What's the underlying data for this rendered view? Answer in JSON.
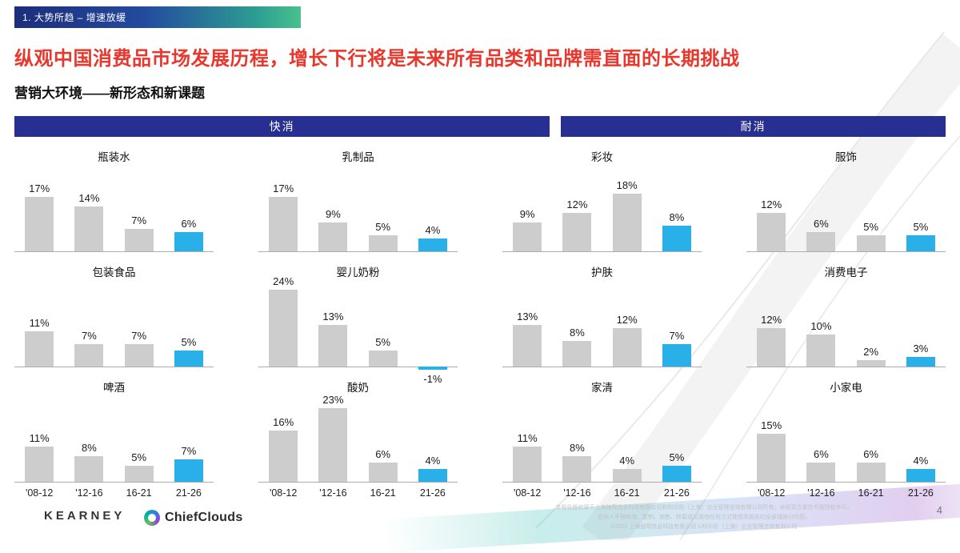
{
  "slide": {
    "kicker": "1. 大势所趋 – 增速放缓",
    "title": "纵观中国消费品市场发展历程，增长下行将是未来所有品类和品牌需直面的长期挑战",
    "subtitle": "营销大环境——新形态和新课题",
    "page_number": "4"
  },
  "sections": [
    {
      "label": "快消"
    },
    {
      "label": "耐消"
    }
  ],
  "footer": {
    "kearney_logo": "KEARNEY",
    "chiefclouds_logo": "ChiefClouds",
    "disclaimer_lines": [
      "本报告版权属于上海驰骛信息科技有限公司和科尔尼（上海）企业管理咨询有限公司所有，未经双方事先书面授权许可，",
      "任何人不得修改、复制、销售、转载或以其他任何方式使用本报告的全部或部分内容。",
      "©2022 上海驰骛信息科技有限公司 ©科尔尼（上海）企业管理咨询有限公司"
    ]
  },
  "colors": {
    "bar_gray": "#cdcdcd",
    "bar_blue": "#2ab0e8",
    "header_navy": "#272f93",
    "title_red": "#e8372c"
  },
  "chart_data": [
    {
      "type": "bar",
      "title": "瓶装水",
      "group": "快消",
      "categories": [
        "'08-12",
        "'12-16",
        "16-21",
        "21-26"
      ],
      "values": [
        17,
        14,
        7,
        6
      ],
      "unit": "%",
      "ylim": [
        -2,
        25
      ],
      "highlight": "last_bar_blue"
    },
    {
      "type": "bar",
      "title": "乳制品",
      "group": "快消",
      "categories": [
        "'08-12",
        "'12-16",
        "16-21",
        "21-26"
      ],
      "values": [
        17,
        9,
        5,
        4
      ],
      "unit": "%",
      "ylim": [
        -2,
        25
      ],
      "highlight": "last_bar_blue"
    },
    {
      "type": "bar",
      "title": "彩妆",
      "group": "耐消",
      "categories": [
        "'08-12",
        "'12-16",
        "16-21",
        "21-26"
      ],
      "values": [
        9,
        12,
        18,
        8
      ],
      "unit": "%",
      "ylim": [
        -2,
        25
      ],
      "highlight": "last_bar_blue"
    },
    {
      "type": "bar",
      "title": "服饰",
      "group": "耐消",
      "categories": [
        "'08-12",
        "'12-16",
        "16-21",
        "21-26"
      ],
      "values": [
        12,
        6,
        5,
        5
      ],
      "unit": "%",
      "ylim": [
        -2,
        25
      ],
      "highlight": "last_bar_blue"
    },
    {
      "type": "bar",
      "title": "包装食品",
      "group": "快消",
      "categories": [
        "'08-12",
        "'12-16",
        "16-21",
        "21-26"
      ],
      "values": [
        11,
        7,
        7,
        5
      ],
      "unit": "%",
      "ylim": [
        -2,
        25
      ],
      "highlight": "last_bar_blue"
    },
    {
      "type": "bar",
      "title": "婴儿奶粉",
      "group": "快消",
      "categories": [
        "'08-12",
        "'12-16",
        "16-21",
        "21-26"
      ],
      "values": [
        24,
        13,
        5,
        -1
      ],
      "unit": "%",
      "ylim": [
        -2,
        25
      ],
      "highlight": "last_bar_blue"
    },
    {
      "type": "bar",
      "title": "护肤",
      "group": "耐消",
      "categories": [
        "'08-12",
        "'12-16",
        "16-21",
        "21-26"
      ],
      "values": [
        13,
        8,
        12,
        7
      ],
      "unit": "%",
      "ylim": [
        -2,
        25
      ],
      "highlight": "last_bar_blue"
    },
    {
      "type": "bar",
      "title": "消费电子",
      "group": "耐消",
      "categories": [
        "'08-12",
        "'12-16",
        "16-21",
        "21-26"
      ],
      "values": [
        12,
        10,
        2,
        3
      ],
      "unit": "%",
      "ylim": [
        -2,
        25
      ],
      "highlight": "last_bar_blue"
    },
    {
      "type": "bar",
      "title": "啤酒",
      "group": "快消",
      "categories": [
        "'08-12",
        "'12-16",
        "16-21",
        "21-26"
      ],
      "values": [
        11,
        8,
        5,
        7
      ],
      "unit": "%",
      "ylim": [
        -2,
        25
      ],
      "highlight": "last_bar_blue"
    },
    {
      "type": "bar",
      "title": "酸奶",
      "group": "快消",
      "categories": [
        "'08-12",
        "'12-16",
        "16-21",
        "21-26"
      ],
      "values": [
        16,
        23,
        6,
        4
      ],
      "unit": "%",
      "ylim": [
        -2,
        25
      ],
      "highlight": "last_bar_blue"
    },
    {
      "type": "bar",
      "title": "家清",
      "group": "耐消",
      "categories": [
        "'08-12",
        "'12-16",
        "16-21",
        "21-26"
      ],
      "values": [
        11,
        8,
        4,
        5
      ],
      "unit": "%",
      "ylim": [
        -2,
        25
      ],
      "highlight": "last_bar_blue"
    },
    {
      "type": "bar",
      "title": "小家电",
      "group": "耐消",
      "categories": [
        "'08-12",
        "'12-16",
        "16-21",
        "21-26"
      ],
      "values": [
        15,
        6,
        6,
        4
      ],
      "unit": "%",
      "ylim": [
        -2,
        25
      ],
      "highlight": "last_bar_blue"
    }
  ]
}
